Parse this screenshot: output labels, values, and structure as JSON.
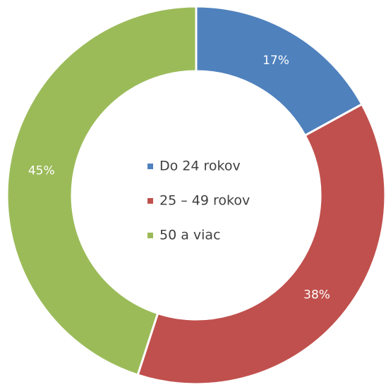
{
  "chart_data": {
    "type": "donut",
    "categories": [
      "Do 24 rokov",
      "25 – 49 rokov",
      "50 a viac"
    ],
    "values": [
      17,
      38,
      45
    ],
    "value_labels": [
      "17%",
      "38%",
      "45%"
    ],
    "colors": [
      "#4f81bd",
      "#c0504d",
      "#9bbb59"
    ],
    "legend": "center"
  }
}
